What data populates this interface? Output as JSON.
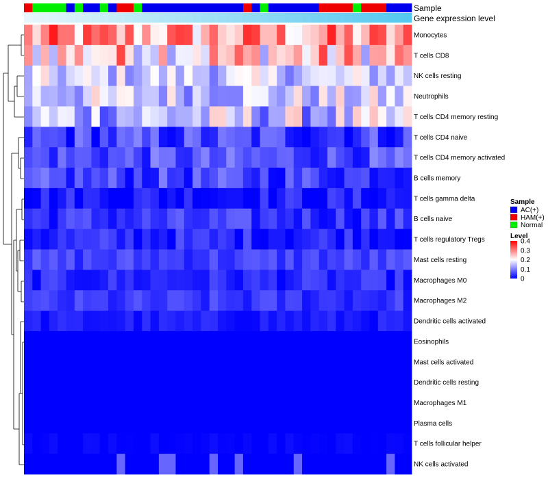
{
  "chart_data": {
    "type": "heatmap",
    "annotations": {
      "sample_label": "Sample",
      "expression_label": "Gene expression level"
    },
    "rows": [
      "Monocytes",
      "T cells CD8",
      "NK cells resting",
      "Neutrophils",
      "T cells CD4 memory resting",
      "T cells CD4 naive",
      "T cells CD4 memory activated",
      "B cells memory",
      "T cells gamma delta",
      "B cells naive",
      "T cells regulatory  Tregs",
      "Mast cells resting",
      "Macrophages M0",
      "Macrophages M2",
      "Dendritic cells activated",
      "Eosinophils",
      "Mast cells activated",
      "Dendritic cells resting",
      "Macrophages M1",
      "Plasma cells",
      "T cells follicular helper",
      "NK cells activated"
    ],
    "sample_groups": [
      "HAM(+)",
      "Normal",
      "Normal",
      "Normal",
      "Normal",
      "AC(+)",
      "Normal",
      "AC(+)",
      "AC(+)",
      "Normal",
      "AC(+)",
      "HAM(+)",
      "HAM(+)",
      "Normal",
      "AC(+)",
      "AC(+)",
      "AC(+)",
      "AC(+)",
      "AC(+)",
      "AC(+)",
      "AC(+)",
      "AC(+)",
      "AC(+)",
      "AC(+)",
      "AC(+)",
      "AC(+)",
      "HAM(+)",
      "AC(+)",
      "Normal",
      "AC(+)",
      "AC(+)",
      "AC(+)",
      "AC(+)",
      "AC(+)",
      "AC(+)",
      "HAM(+)",
      "HAM(+)",
      "HAM(+)",
      "HAM(+)",
      "Normal",
      "HAM(+)",
      "HAM(+)",
      "HAM(+)",
      "AC(+)",
      "AC(+)",
      "AC(+)"
    ],
    "group_colors": {
      "AC(+)": "#0000ee",
      "HAM(+)": "#ee0000",
      "Normal": "#00ee00"
    },
    "expression_colors": {
      "low": "#e6f6fb",
      "high": "#55c8ef"
    },
    "heat_colors": [
      "#0000ff",
      "#ffffff",
      "#ff0000"
    ],
    "row_profiles": [
      {
        "base": 0.27,
        "amp": 0.11,
        "tail_value": null
      },
      {
        "base": 0.24,
        "amp": 0.12,
        "tail_value": null
      },
      {
        "base": 0.16,
        "amp": 0.07,
        "tail_value": null
      },
      {
        "base": 0.16,
        "amp": 0.08,
        "tail_value": null
      },
      {
        "base": 0.15,
        "amp": 0.1,
        "tail_value": null
      },
      {
        "base": 0.05,
        "amp": 0.06,
        "tail_value": null
      },
      {
        "base": 0.06,
        "amp": 0.05,
        "tail_value": null
      },
      {
        "base": 0.05,
        "amp": 0.05,
        "tail_value": null
      },
      {
        "base": 0.02,
        "amp": 0.04,
        "tail_value": null
      },
      {
        "base": 0.04,
        "amp": 0.04,
        "tail_value": null
      },
      {
        "base": 0.03,
        "amp": 0.04,
        "tail_value": null
      },
      {
        "base": 0.05,
        "amp": 0.03,
        "tail_value": null
      },
      {
        "base": 0.03,
        "amp": 0.03,
        "tail_value": null
      },
      {
        "base": 0.04,
        "amp": 0.03,
        "tail_value": null
      },
      {
        "base": 0.02,
        "amp": 0.02,
        "tail_value": null
      },
      {
        "base": 0.0,
        "amp": 0.0,
        "tail_value": null
      },
      {
        "base": 0.0,
        "amp": 0.0,
        "tail_value": null
      },
      {
        "base": 0.0,
        "amp": 0.0,
        "tail_value": null
      },
      {
        "base": 0.0,
        "amp": 0.0,
        "tail_value": null
      },
      {
        "base": 0.0,
        "amp": 0.0,
        "tail_value": null
      },
      {
        "base": 0.0,
        "amp": 0.01,
        "tail_value": 0.01
      },
      {
        "base": 0.0,
        "amp": 0.0,
        "tail_value": 0.08
      }
    ],
    "color_range": [
      0,
      0.4
    ],
    "legend": {
      "sample_title": "Sample",
      "sample_entries": [
        "AC(+)",
        "HAM(+)",
        "Normal"
      ],
      "level_title": "Level",
      "level_ticks": [
        "0.4",
        "0.3",
        "0.2",
        "0.1",
        "0"
      ],
      "level_values": [
        0.4,
        0.3,
        0.2,
        0.1,
        0
      ]
    }
  }
}
